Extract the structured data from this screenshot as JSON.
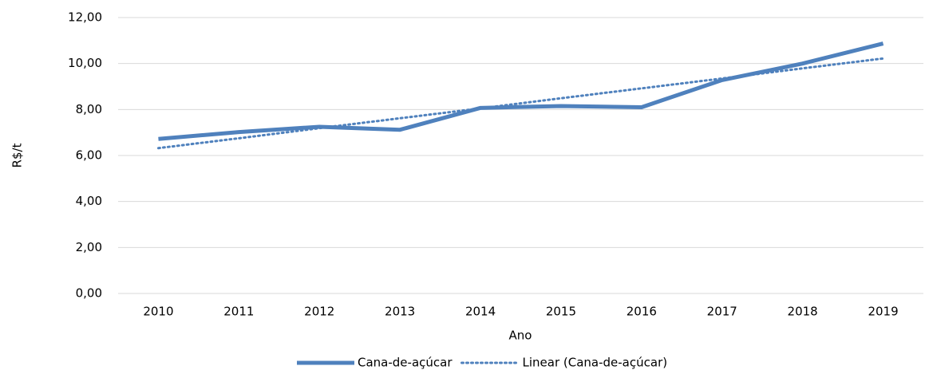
{
  "chart_data": {
    "type": "line",
    "x_label": "Ano",
    "y_label": "R$/t",
    "categories": [
      "2010",
      "2011",
      "2012",
      "2013",
      "2014",
      "2015",
      "2016",
      "2017",
      "2018",
      "2019"
    ],
    "series": [
      {
        "name": "Cana-de-açúcar",
        "color": "#4f81bd",
        "style": "solid",
        "values": [
          6.72,
          7.02,
          7.25,
          7.12,
          8.07,
          8.15,
          8.1,
          9.28,
          10.0,
          10.87
        ]
      },
      {
        "name": "Linear (Cana-de-açúcar)",
        "color": "#4f81bd",
        "style": "dotted",
        "values": [
          6.32,
          6.75,
          7.19,
          7.62,
          8.05,
          8.49,
          8.92,
          9.35,
          9.79,
          10.22
        ]
      }
    ],
    "ylim": [
      0,
      12
    ],
    "yticks": [
      {
        "value": 0,
        "label": "0,00"
      },
      {
        "value": 2,
        "label": "2,00"
      },
      {
        "value": 4,
        "label": "4,00"
      },
      {
        "value": 6,
        "label": "6,00"
      },
      {
        "value": 8,
        "label": "8,00"
      },
      {
        "value": 10,
        "label": "10,00"
      },
      {
        "value": 12,
        "label": "12,00"
      }
    ],
    "grid": true,
    "legend": "bottom"
  }
}
